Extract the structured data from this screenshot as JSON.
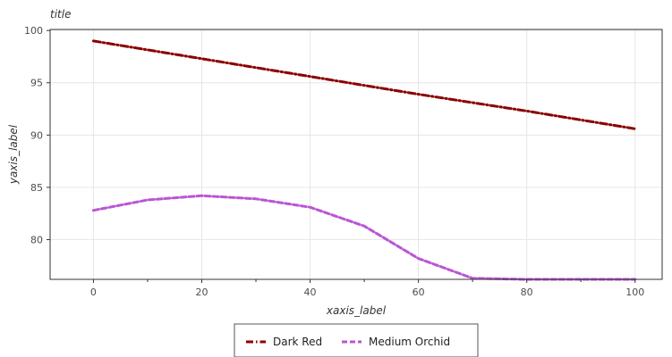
{
  "chart_data": {
    "type": "line",
    "title": "title",
    "xlabel": "xaxis_label",
    "ylabel": "yaxis_label",
    "x_ticks": [
      0,
      20,
      40,
      60,
      80,
      100
    ],
    "y_ticks": [
      80,
      85,
      90,
      95,
      100
    ],
    "xlim": [
      -8,
      105
    ],
    "ylim": [
      76.2,
      100.1
    ],
    "grid": true,
    "legend_position": "bottom",
    "series": [
      {
        "name": "Dark Red",
        "color": "#8b0000",
        "line_style": "dashdot",
        "x": [
          0,
          20,
          40,
          60,
          80,
          100
        ],
        "y": [
          99.0,
          97.3,
          95.6,
          93.9,
          92.3,
          90.6
        ]
      },
      {
        "name": "Medium Orchid",
        "color": "#ba55d3",
        "line_style": "dashed",
        "x": [
          0,
          10,
          20,
          30,
          40,
          50,
          60,
          70,
          80,
          90,
          100
        ],
        "y": [
          82.8,
          83.8,
          84.2,
          83.9,
          83.1,
          81.3,
          78.2,
          76.3,
          76.2,
          76.2,
          76.2
        ]
      }
    ]
  }
}
